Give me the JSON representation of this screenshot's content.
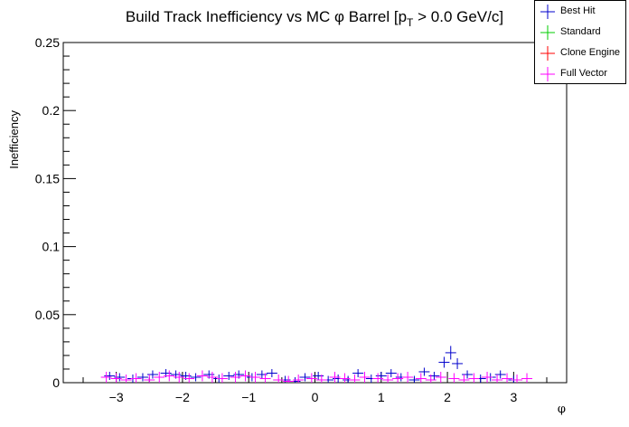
{
  "chart_data": {
    "type": "scatter",
    "title": "Build Track Inefficiency vs MC φ Barrel [p",
    "title_sub": "T",
    "title_tail": " > 0.0 GeV/c]",
    "xlabel": "φ",
    "ylabel": "Inefficiency",
    "xlim": [
      -3.8,
      3.8
    ],
    "ylim": [
      0,
      0.25
    ],
    "x_ticks": [
      -3,
      -2,
      -1,
      0,
      1,
      2,
      3
    ],
    "x_tick_labels": [
      "−3",
      "−2",
      "−1",
      "0",
      "1",
      "2",
      "3"
    ],
    "y_ticks": [
      0,
      0.05,
      0.1,
      0.15,
      0.2,
      0.25
    ],
    "y_tick_labels": [
      "0",
      "0.05",
      "0.1",
      "0.15",
      "0.2",
      "0.25"
    ],
    "legend_position": "top-right",
    "series": [
      {
        "name": "Best Hit",
        "color": "#0000cc",
        "x": [
          -3.1,
          -2.95,
          -2.75,
          -2.6,
          -2.45,
          -2.25,
          -2.1,
          -1.95,
          -1.8,
          -1.6,
          -1.45,
          -1.3,
          -1.15,
          -0.95,
          -0.8,
          -0.65,
          -0.45,
          -0.3,
          -0.15,
          0.05,
          0.2,
          0.35,
          0.5,
          0.65,
          0.85,
          1.0,
          1.15,
          1.3,
          1.5,
          1.65,
          1.8,
          1.95,
          2.05,
          2.15,
          2.3,
          2.5,
          2.65,
          2.8,
          3.0
        ],
        "y": [
          0.005,
          0.004,
          0.003,
          0.004,
          0.006,
          0.007,
          0.006,
          0.005,
          0.004,
          0.006,
          0.003,
          0.005,
          0.006,
          0.004,
          0.006,
          0.007,
          0.002,
          0.001,
          0.004,
          0.005,
          0.002,
          0.003,
          0.002,
          0.007,
          0.003,
          0.005,
          0.007,
          0.004,
          0.002,
          0.008,
          0.005,
          0.015,
          0.022,
          0.014,
          0.006,
          0.003,
          0.004,
          0.006,
          0.002
        ],
        "err": [
          0.003,
          0.003,
          0.003,
          0.003,
          0.003,
          0.003,
          0.003,
          0.003,
          0.003,
          0.003,
          0.003,
          0.003,
          0.003,
          0.003,
          0.003,
          0.003,
          0.003,
          0.003,
          0.003,
          0.003,
          0.003,
          0.003,
          0.003,
          0.003,
          0.003,
          0.003,
          0.003,
          0.003,
          0.003,
          0.003,
          0.003,
          0.004,
          0.005,
          0.004,
          0.003,
          0.003,
          0.003,
          0.003,
          0.003
        ]
      },
      {
        "name": "Standard",
        "color": "#00cc00",
        "x": [],
        "y": [],
        "err": []
      },
      {
        "name": "Clone Engine",
        "color": "#ff0000",
        "x": [],
        "y": [],
        "err": []
      },
      {
        "name": "Full Vector",
        "color": "#ff00ff",
        "x": [
          -3.15,
          -3.0,
          -2.85,
          -2.7,
          -2.5,
          -2.35,
          -2.2,
          -2.05,
          -1.9,
          -1.7,
          -1.55,
          -1.4,
          -1.2,
          -1.05,
          -0.9,
          -0.75,
          -0.55,
          -0.4,
          -0.25,
          -0.05,
          0.1,
          0.3,
          0.45,
          0.6,
          0.75,
          0.95,
          1.1,
          1.25,
          1.4,
          1.6,
          1.75,
          1.9,
          2.1,
          2.25,
          2.4,
          2.6,
          2.75,
          2.9,
          3.05,
          3.2
        ],
        "y": [
          0.004,
          0.003,
          0.002,
          0.003,
          0.002,
          0.004,
          0.005,
          0.004,
          0.003,
          0.005,
          0.004,
          0.003,
          0.004,
          0.005,
          0.004,
          0.003,
          0.002,
          0.001,
          0.002,
          0.003,
          0.002,
          0.004,
          0.003,
          0.002,
          0.004,
          0.003,
          0.002,
          0.003,
          0.004,
          0.003,
          0.002,
          0.004,
          0.003,
          0.002,
          0.003,
          0.004,
          0.002,
          0.003,
          0.002,
          0.003
        ],
        "err": [
          0.004,
          0.004,
          0.004,
          0.004,
          0.004,
          0.004,
          0.004,
          0.004,
          0.004,
          0.004,
          0.004,
          0.004,
          0.004,
          0.004,
          0.004,
          0.004,
          0.004,
          0.004,
          0.004,
          0.004,
          0.004,
          0.004,
          0.004,
          0.004,
          0.004,
          0.004,
          0.004,
          0.004,
          0.004,
          0.004,
          0.004,
          0.004,
          0.004,
          0.004,
          0.004,
          0.004,
          0.004,
          0.004,
          0.004,
          0.004
        ]
      }
    ]
  }
}
